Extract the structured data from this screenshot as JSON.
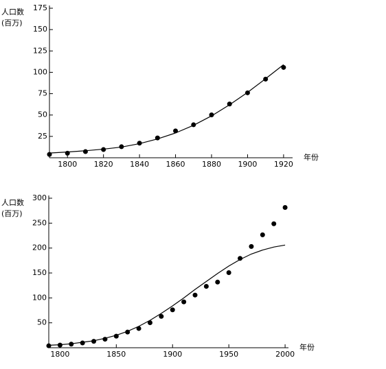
{
  "chart_data": [
    {
      "type": "scatter",
      "xlabel": "年份",
      "ylabel": [
        "人口数",
        "(百万)"
      ],
      "x": [
        1790,
        1800,
        1810,
        1820,
        1830,
        1840,
        1850,
        1860,
        1870,
        1880,
        1890,
        1900,
        1910,
        1920
      ],
      "series": [
        {
          "type": "scatter",
          "color": "#000000",
          "values": [
            3.9,
            5.3,
            7.2,
            9.6,
            12.9,
            17.1,
            23.2,
            31.4,
            38.6,
            50.2,
            62.9,
            76.0,
            92.0,
            105.7
          ]
        },
        {
          "type": "line",
          "color": "#000000",
          "values": [
            5.5,
            6.7,
            8.2,
            10.1,
            12.5,
            16.5,
            22,
            29,
            38,
            49,
            62,
            76.5,
            92.5,
            109
          ]
        }
      ],
      "xlim": [
        1790,
        1925
      ],
      "ylim": [
        0,
        175
      ],
      "xticks": [
        1800,
        1820,
        1840,
        1860,
        1880,
        1900,
        1920
      ],
      "yticks": [
        25,
        50,
        75,
        100,
        125,
        150,
        175
      ]
    },
    {
      "type": "scatter",
      "xlabel": "年份",
      "ylabel": [
        "人口数",
        "(百万)"
      ],
      "x": [
        1790,
        1800,
        1810,
        1820,
        1830,
        1840,
        1850,
        1860,
        1870,
        1880,
        1890,
        1900,
        1910,
        1920,
        1930,
        1940,
        1950,
        1960,
        1970,
        1980,
        1990,
        2000
      ],
      "series": [
        {
          "type": "scatter",
          "color": "#000000",
          "values": [
            3.9,
            5.3,
            7.2,
            9.6,
            12.9,
            17.1,
            23.2,
            31.4,
            38.6,
            50.2,
            62.9,
            76.0,
            92.0,
            105.7,
            123.2,
            131.7,
            150.7,
            179.3,
            203.2,
            226.5,
            248.7,
            281.4
          ]
        },
        {
          "type": "line",
          "color": "#000000",
          "values": [
            5,
            6,
            8,
            11,
            14,
            19,
            25,
            33,
            43,
            55,
            69,
            84,
            100,
            117,
            133,
            149,
            164,
            177,
            188,
            196,
            202,
            206
          ]
        }
      ],
      "xlim": [
        1790,
        2003
      ],
      "ylim": [
        0,
        300
      ],
      "xticks": [
        1800,
        1850,
        1900,
        1950,
        2000
      ],
      "yticks": [
        50,
        100,
        150,
        200,
        250,
        300
      ]
    }
  ]
}
